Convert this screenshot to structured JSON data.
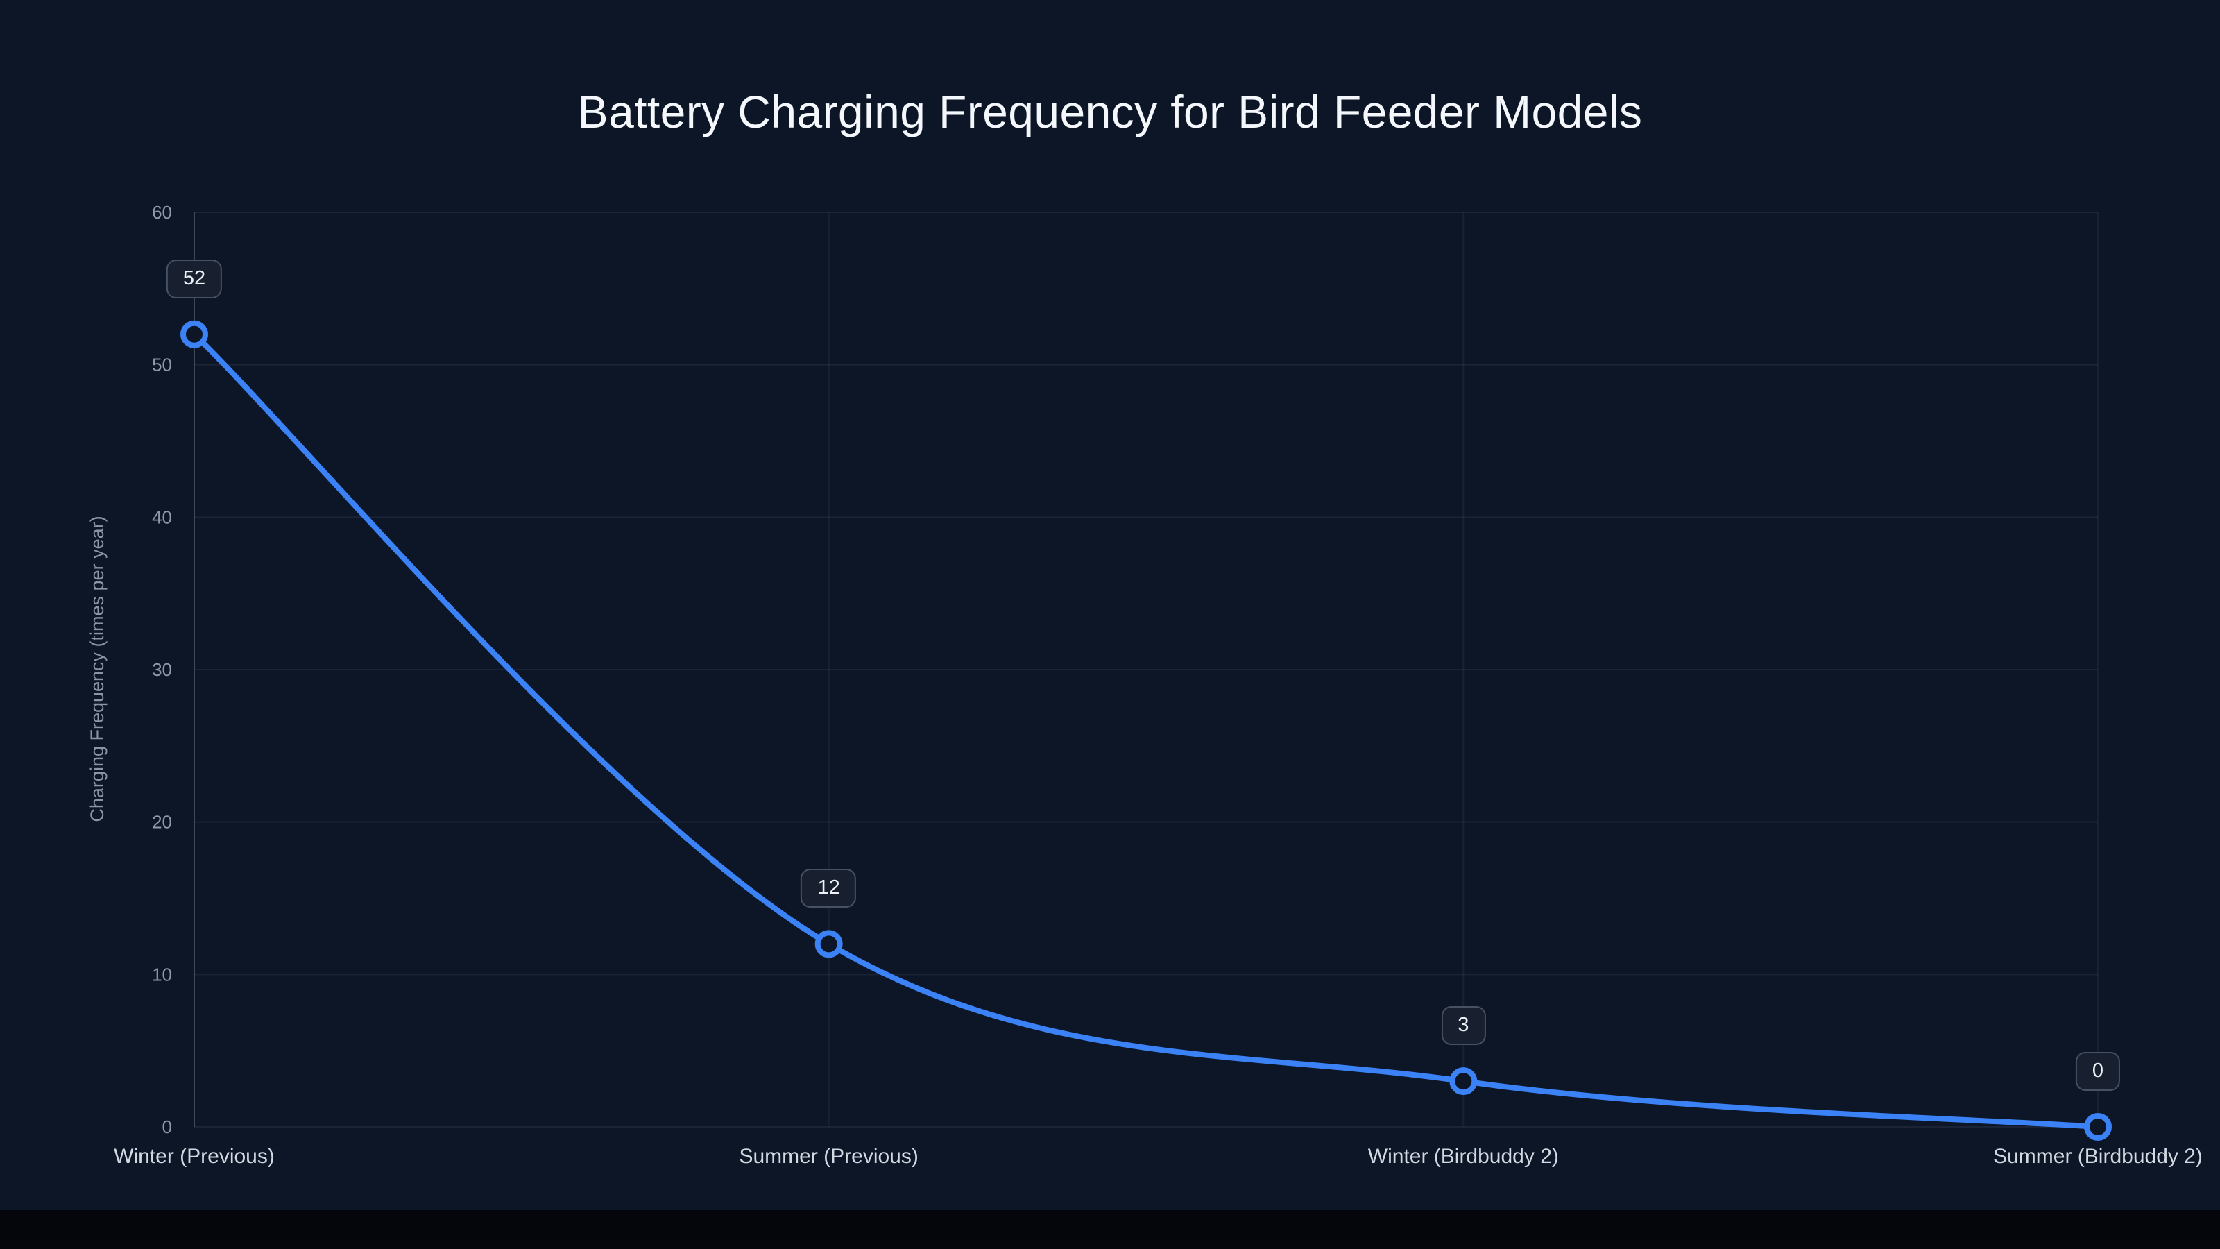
{
  "page": {
    "background_color": "#0d1627",
    "bottom_bar_color": "#04060c"
  },
  "chart_data": {
    "type": "line",
    "title": "Battery Charging Frequency for Bird Feeder Models",
    "ylabel": "Charging Frequency (times per year)",
    "xlabel": "",
    "categories": [
      "Winter (Previous)",
      "Summer (Previous)",
      "Winter (Birdbuddy 2)",
      "Summer (Birdbuddy 2)"
    ],
    "values": [
      52,
      12,
      3,
      0
    ],
    "point_labels": [
      "52",
      "12",
      "3",
      "0"
    ],
    "ylim": [
      0,
      60
    ],
    "yticks": [
      0,
      10,
      20,
      30,
      40,
      50,
      60
    ],
    "grid": true,
    "legend_position": "none",
    "line_color": "#3b82f6",
    "point_fill_color": "#0d1627",
    "gridline_color": "rgba(148,163,184,0.10)",
    "axis_line_color": "rgba(148,163,184,0.30)",
    "tick_label_color": "#8e99ab",
    "category_label_color": "#d2d9e2"
  }
}
